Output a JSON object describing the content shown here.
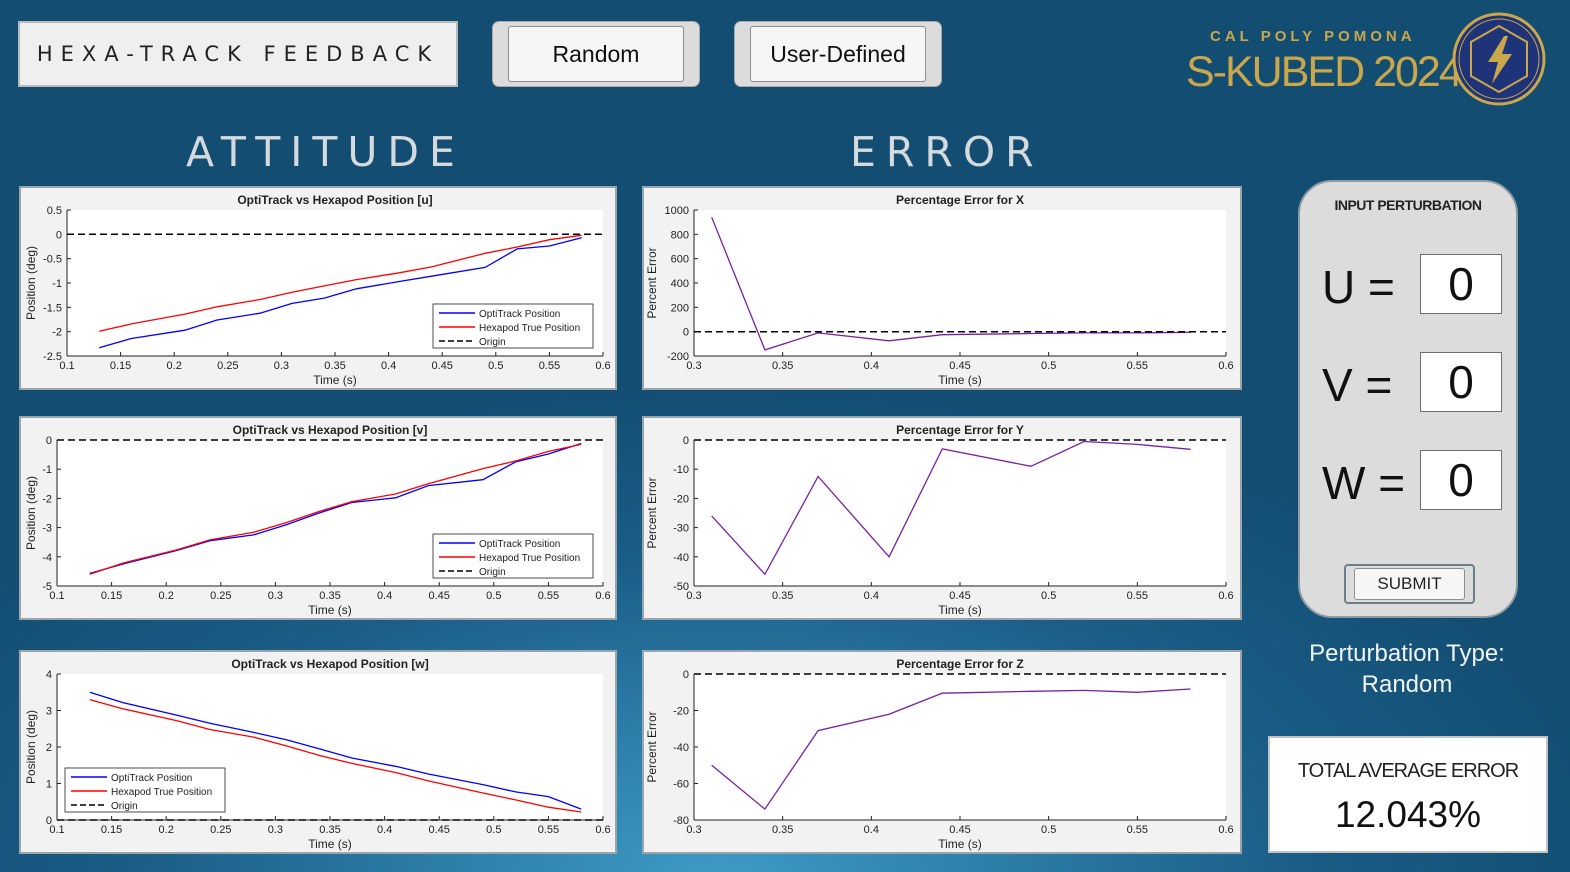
{
  "header": {
    "title": "HEXA-TRACK FEEDBACK",
    "random_button": "Random",
    "user_defined_button": "User-Defined"
  },
  "logo": {
    "org": "CAL POLY POMONA",
    "name": "S-KUBED 2024",
    "colors": {
      "gold": "#caa74a",
      "navy": "#1f3478"
    }
  },
  "sections": {
    "attitude": "ATTITUDE",
    "error": "ERROR"
  },
  "input_panel": {
    "title": "INPUT PERTURBATION",
    "u_label": "U =",
    "v_label": "V =",
    "w_label": "W =",
    "u_value": "0",
    "v_value": "0",
    "w_value": "0",
    "submit_label": "SUBMIT"
  },
  "perturbation": {
    "label": "Perturbation Type:",
    "value": "Random"
  },
  "total_error": {
    "label": "TOTAL AVERAGE ERROR",
    "value": "12.043%"
  },
  "chart_data": [
    {
      "id": "attitude-u",
      "type": "line",
      "title": "OptiTrack vs Hexapod Position [u]",
      "xlabel": "Time (s)",
      "ylabel": "Position (deg)",
      "xlim": [
        0.1,
        0.6
      ],
      "ylim": [
        -2.5,
        0.5
      ],
      "xticks": [
        "0.1",
        "0.15",
        "0.2",
        "0.25",
        "0.3",
        "0.35",
        "0.4",
        "0.45",
        "0.5",
        "0.55",
        "0.6"
      ],
      "yticks": [
        "-2.5",
        "-2",
        "-1.5",
        "-1",
        "-0.5",
        "0",
        "0.5"
      ],
      "legend": "bottom-right",
      "legend_entries": [
        "OptiTrack Position",
        "Hexapod True Position",
        "Origin"
      ],
      "series": [
        {
          "name": "OptiTrack Position",
          "color": "#0000ff",
          "x": [
            0.13,
            0.16,
            0.21,
            0.24,
            0.28,
            0.31,
            0.34,
            0.37,
            0.41,
            0.44,
            0.49,
            0.52,
            0.55,
            0.58
          ],
          "y": [
            -2.33,
            -2.14,
            -1.97,
            -1.76,
            -1.62,
            -1.42,
            -1.31,
            -1.12,
            -0.97,
            -0.86,
            -0.68,
            -0.3,
            -0.24,
            -0.07
          ]
        },
        {
          "name": "Hexapod True Position",
          "color": "#ff0000",
          "x": [
            0.13,
            0.16,
            0.21,
            0.24,
            0.28,
            0.31,
            0.34,
            0.37,
            0.41,
            0.44,
            0.49,
            0.52,
            0.55,
            0.58
          ],
          "y": [
            -1.99,
            -1.84,
            -1.64,
            -1.49,
            -1.34,
            -1.19,
            -1.06,
            -0.93,
            -0.79,
            -0.67,
            -0.39,
            -0.26,
            -0.11,
            -0.02
          ]
        },
        {
          "name": "Origin",
          "color": "#000000",
          "dashed": true,
          "x": [
            0.1,
            0.6
          ],
          "y": [
            0,
            0
          ]
        }
      ]
    },
    {
      "id": "attitude-v",
      "type": "line",
      "title": "OptiTrack vs Hexapod Position [v]",
      "xlabel": "Time (s)",
      "ylabel": "Position (deg)",
      "xlim": [
        0.1,
        0.6
      ],
      "ylim": [
        -5,
        0
      ],
      "xticks": [
        "0.1",
        "0.15",
        "0.2",
        "0.25",
        "0.3",
        "0.35",
        "0.4",
        "0.45",
        "0.5",
        "0.55",
        "0.6"
      ],
      "yticks": [
        "-5",
        "-4",
        "-3",
        "-2",
        "-1",
        "0"
      ],
      "legend": "bottom-right",
      "legend_entries": [
        "OptiTrack Position",
        "Hexapod True Position",
        "Origin"
      ],
      "series": [
        {
          "name": "OptiTrack Position",
          "color": "#0000ff",
          "x": [
            0.13,
            0.16,
            0.21,
            0.24,
            0.28,
            0.31,
            0.34,
            0.37,
            0.41,
            0.44,
            0.49,
            0.52,
            0.55,
            0.58
          ],
          "y": [
            -4.57,
            -4.25,
            -3.78,
            -3.45,
            -3.25,
            -2.9,
            -2.5,
            -2.14,
            -1.98,
            -1.56,
            -1.36,
            -0.75,
            -0.48,
            -0.12
          ]
        },
        {
          "name": "Hexapod True Position",
          "color": "#ff0000",
          "x": [
            0.13,
            0.16,
            0.21,
            0.24,
            0.28,
            0.31,
            0.34,
            0.37,
            0.41,
            0.44,
            0.49,
            0.52,
            0.55,
            0.58
          ],
          "y": [
            -4.6,
            -4.22,
            -3.76,
            -3.42,
            -3.16,
            -2.83,
            -2.45,
            -2.11,
            -1.85,
            -1.5,
            -0.98,
            -0.72,
            -0.39,
            -0.15
          ]
        },
        {
          "name": "Origin",
          "color": "#000000",
          "dashed": true,
          "x": [
            0.1,
            0.6
          ],
          "y": [
            0,
            0
          ]
        }
      ]
    },
    {
      "id": "attitude-w",
      "type": "line",
      "title": "OptiTrack vs Hexapod Position [w]",
      "xlabel": "Time (s)",
      "ylabel": "Position (deg)",
      "xlim": [
        0.1,
        0.6
      ],
      "ylim": [
        0,
        4
      ],
      "xticks": [
        "0.1",
        "0.15",
        "0.2",
        "0.25",
        "0.3",
        "0.35",
        "0.4",
        "0.45",
        "0.5",
        "0.55",
        "0.6"
      ],
      "yticks": [
        "0",
        "1",
        "2",
        "3",
        "4"
      ],
      "legend": "bottom-left",
      "legend_entries": [
        "OptiTrack Position",
        "Hexapod True Position",
        "Origin"
      ],
      "series": [
        {
          "name": "OptiTrack Position",
          "color": "#0000ff",
          "x": [
            0.13,
            0.16,
            0.21,
            0.24,
            0.28,
            0.31,
            0.34,
            0.37,
            0.41,
            0.44,
            0.49,
            0.52,
            0.55,
            0.58
          ],
          "y": [
            3.5,
            3.22,
            2.87,
            2.65,
            2.4,
            2.2,
            1.95,
            1.7,
            1.47,
            1.26,
            0.97,
            0.77,
            0.64,
            0.3
          ]
        },
        {
          "name": "Hexapod True Position",
          "color": "#ff0000",
          "x": [
            0.13,
            0.16,
            0.21,
            0.24,
            0.28,
            0.31,
            0.34,
            0.37,
            0.41,
            0.44,
            0.49,
            0.52,
            0.55,
            0.58
          ],
          "y": [
            3.3,
            3.05,
            2.72,
            2.48,
            2.27,
            2.03,
            1.77,
            1.55,
            1.3,
            1.07,
            0.74,
            0.55,
            0.35,
            0.22
          ]
        },
        {
          "name": "Origin",
          "color": "#000000",
          "dashed": true,
          "x": [
            0.1,
            0.6
          ],
          "y": [
            0,
            0
          ]
        }
      ]
    },
    {
      "id": "error-x",
      "type": "line",
      "title": "Percentage Error for X",
      "xlabel": "Time (s)",
      "ylabel": "Percent Error",
      "xlim": [
        0.3,
        0.6
      ],
      "ylim": [
        -200,
        1000
      ],
      "xticks": [
        "0.3",
        "0.35",
        "0.4",
        "0.45",
        "0.5",
        "0.55",
        "0.6"
      ],
      "yticks": [
        "-200",
        "0",
        "200",
        "400",
        "600",
        "800",
        "1000"
      ],
      "series": [
        {
          "color": "#7b1fa2",
          "x": [
            0.31,
            0.34,
            0.37,
            0.41,
            0.44,
            0.49,
            0.52,
            0.55,
            0.58
          ],
          "y": [
            940,
            -150,
            -10,
            -75,
            -25,
            -15,
            -10,
            -10,
            -5
          ]
        },
        {
          "color": "#000000",
          "dashed": true,
          "x": [
            0.3,
            0.6
          ],
          "y": [
            0,
            0
          ]
        }
      ]
    },
    {
      "id": "error-y",
      "type": "line",
      "title": "Percentage Error for Y",
      "xlabel": "Time (s)",
      "ylabel": "Percent Error",
      "xlim": [
        0.3,
        0.6
      ],
      "ylim": [
        -50,
        0
      ],
      "xticks": [
        "0.3",
        "0.35",
        "0.4",
        "0.45",
        "0.5",
        "0.55",
        "0.6"
      ],
      "yticks": [
        "-50",
        "-40",
        "-30",
        "-20",
        "-10",
        "0"
      ],
      "series": [
        {
          "color": "#7b1fa2",
          "x": [
            0.31,
            0.34,
            0.37,
            0.41,
            0.44,
            0.49,
            0.52,
            0.55,
            0.58
          ],
          "y": [
            -26,
            -46,
            -12.5,
            -40,
            -3,
            -9,
            -0.5,
            -1.5,
            -3.2
          ]
        },
        {
          "color": "#000000",
          "dashed": true,
          "x": [
            0.3,
            0.6
          ],
          "y": [
            0,
            0
          ]
        }
      ]
    },
    {
      "id": "error-z",
      "type": "line",
      "title": "Percentage Error for Z",
      "xlabel": "Time (s)",
      "ylabel": "Percent Error",
      "xlim": [
        0.3,
        0.6
      ],
      "ylim": [
        -80,
        0
      ],
      "xticks": [
        "0.3",
        "0.35",
        "0.4",
        "0.45",
        "0.5",
        "0.55",
        "0.6"
      ],
      "yticks": [
        "-80",
        "-60",
        "-40",
        "-20",
        "0"
      ],
      "series": [
        {
          "color": "#7b1fa2",
          "x": [
            0.31,
            0.34,
            0.37,
            0.41,
            0.44,
            0.49,
            0.52,
            0.55,
            0.58
          ],
          "y": [
            -50,
            -74,
            -31,
            -22,
            -10.5,
            -9.5,
            -9,
            -10,
            -8.2
          ]
        },
        {
          "color": "#000000",
          "dashed": true,
          "x": [
            0.3,
            0.6
          ],
          "y": [
            0,
            0
          ]
        }
      ]
    }
  ]
}
